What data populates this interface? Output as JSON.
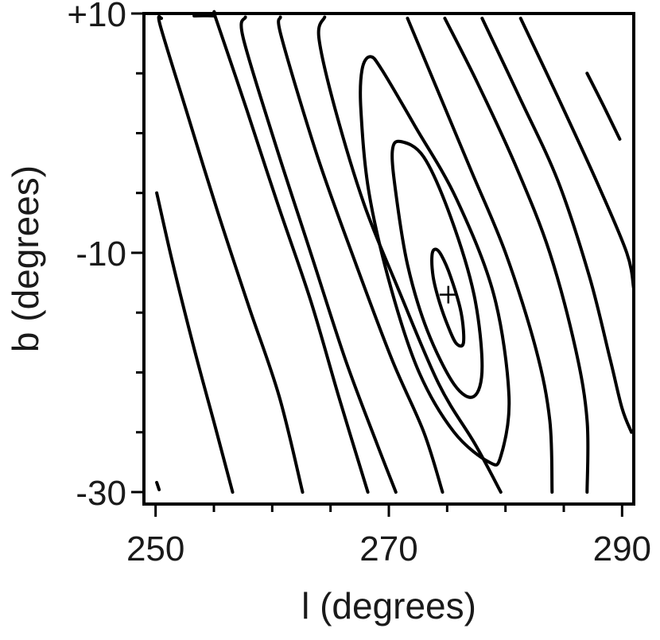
{
  "chart_data": {
    "type": "contour",
    "title": "",
    "xlabel": "l (degrees)",
    "ylabel": "b (degrees)",
    "xlim": [
      249,
      291
    ],
    "ylim": [
      -31,
      10
    ],
    "x_ticks": [
      {
        "value": 250,
        "label": "250"
      },
      {
        "value": 270,
        "label": "270"
      },
      {
        "value": 290,
        "label": "290"
      }
    ],
    "x_minor_ticks": [
      255,
      260,
      265,
      275,
      280,
      285
    ],
    "y_ticks": [
      {
        "value": 10,
        "label": "+10"
      },
      {
        "value": -10,
        "label": "-10"
      },
      {
        "value": -30,
        "label": "-30"
      }
    ],
    "y_minor_ticks": [
      5,
      0,
      -5,
      -15,
      -20,
      -25
    ],
    "grid": false,
    "marker": {
      "symbol": "+",
      "x": 275.1,
      "y": -13.5
    },
    "series": [
      {
        "closed": false,
        "points": [
          [
            250.1,
            -29.2
          ],
          [
            250.3,
            -29.8
          ]
        ]
      },
      {
        "closed": false,
        "points": [
          [
            250.1,
            -5
          ],
          [
            251.5,
            -11
          ],
          [
            253.3,
            -18
          ],
          [
            255.1,
            -24.5
          ],
          [
            256.6,
            -30
          ]
        ]
      },
      {
        "closed": false,
        "points": [
          [
            250.5,
            9.6
          ],
          [
            250.4,
            9
          ],
          [
            252.6,
            2
          ],
          [
            255.3,
            -6.5
          ],
          [
            258.0,
            -14.5
          ],
          [
            260.6,
            -22
          ],
          [
            262.6,
            -30
          ]
        ]
      },
      {
        "closed": false,
        "points": [
          [
            253.3,
            9.8
          ],
          [
            255.0,
            9.8
          ],
          [
            255.2,
            9.5
          ],
          [
            257.8,
            2
          ],
          [
            260.5,
            -6
          ],
          [
            263.3,
            -14
          ],
          [
            265.7,
            -22
          ],
          [
            268.2,
            -30
          ]
        ]
      },
      {
        "closed": false,
        "points": [
          [
            257.7,
            9.7
          ],
          [
            257.5,
            8
          ],
          [
            260.3,
            -1
          ],
          [
            263.3,
            -10
          ],
          [
            266.3,
            -19
          ],
          [
            269.0,
            -26
          ],
          [
            270.6,
            -30
          ]
        ]
      },
      {
        "closed": false,
        "points": [
          [
            260.7,
            9.7
          ],
          [
            260.8,
            8
          ],
          [
            263.9,
            -2
          ],
          [
            267.2,
            -11
          ],
          [
            270.3,
            -19
          ],
          [
            273.0,
            -25
          ],
          [
            274.6,
            -30
          ]
        ]
      },
      {
        "closed": false,
        "points": [
          [
            264.5,
            9.7
          ],
          [
            264.0,
            8
          ],
          [
            265.4,
            2
          ],
          [
            267.9,
            -6
          ],
          [
            270.8,
            -13
          ],
          [
            274.3,
            -21
          ],
          [
            277.4,
            -26
          ],
          [
            279.6,
            -30
          ]
        ]
      },
      {
        "closed": true,
        "points": [
          [
            268.4,
            6.4
          ],
          [
            269.4,
            5.3
          ],
          [
            272.3,
            0.5
          ],
          [
            275.8,
            -5.5
          ],
          [
            279.0,
            -13.5
          ],
          [
            280.3,
            -22
          ],
          [
            279.6,
            -27
          ],
          [
            278.6,
            -27.5
          ],
          [
            275.6,
            -25
          ],
          [
            272.6,
            -20
          ],
          [
            270.2,
            -13
          ],
          [
            268.3,
            -5
          ],
          [
            267.6,
            2
          ],
          [
            267.7,
            5.3
          ]
        ]
      },
      {
        "closed": true,
        "points": [
          [
            271.0,
            -0.7
          ],
          [
            273.0,
            -2
          ],
          [
            275.3,
            -7
          ],
          [
            277.3,
            -13.5
          ],
          [
            278.0,
            -19.5
          ],
          [
            277.3,
            -22
          ],
          [
            275.6,
            -21
          ],
          [
            273.3,
            -16.5
          ],
          [
            271.6,
            -11
          ],
          [
            270.6,
            -5
          ],
          [
            270.3,
            -1.5
          ]
        ]
      },
      {
        "closed": true,
        "points": [
          [
            274.0,
            -9.7
          ],
          [
            274.5,
            -10.2
          ],
          [
            275.3,
            -12
          ],
          [
            276.2,
            -15
          ],
          [
            276.4,
            -17.5
          ],
          [
            275.8,
            -17.6
          ],
          [
            275.1,
            -16.2
          ],
          [
            274.3,
            -14
          ],
          [
            273.8,
            -12
          ],
          [
            273.7,
            -10.2
          ]
        ]
      },
      {
        "closed": false,
        "points": [
          [
            271.6,
            9.6
          ],
          [
            274.0,
            4
          ],
          [
            277.0,
            -3
          ],
          [
            280.0,
            -10
          ],
          [
            282.6,
            -18
          ],
          [
            283.8,
            -24
          ],
          [
            284.0,
            -30
          ]
        ]
      },
      {
        "closed": false,
        "points": [
          [
            274.8,
            9.6
          ],
          [
            277.7,
            4
          ],
          [
            281.0,
            -3
          ],
          [
            283.8,
            -10
          ],
          [
            286.0,
            -18
          ],
          [
            287.0,
            -24
          ],
          [
            287.0,
            -30
          ]
        ]
      },
      {
        "closed": false,
        "points": [
          [
            278.0,
            9.6
          ],
          [
            281.2,
            3
          ],
          [
            284.5,
            -4
          ],
          [
            287.2,
            -12
          ],
          [
            289.0,
            -19
          ],
          [
            290.0,
            -23
          ],
          [
            290.8,
            -25
          ]
        ]
      },
      {
        "closed": false,
        "points": [
          [
            281.3,
            9.6
          ],
          [
            284.5,
            3
          ],
          [
            287.8,
            -4
          ],
          [
            290.4,
            -10
          ],
          [
            291.0,
            -13
          ]
        ]
      },
      {
        "closed": false,
        "points": [
          [
            287.0,
            5
          ],
          [
            288.4,
            2.3
          ],
          [
            289.8,
            -0.5
          ]
        ]
      }
    ]
  }
}
